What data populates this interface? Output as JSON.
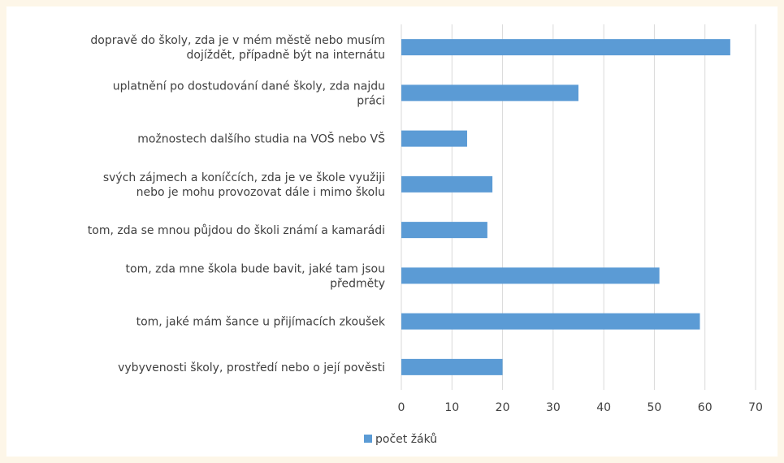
{
  "chart_data": {
    "type": "bar",
    "orientation": "horizontal",
    "categories": [
      [
        "dopravě do školy, zda je v mém městě nebo musím",
        "dojíždět, případně být na internátu"
      ],
      [
        "uplatnění po dostudování dané školy, zda najdu",
        "práci"
      ],
      [
        "možnostech dalšího studia na VOŠ nebo VŠ"
      ],
      [
        "svých zájmech a koníčcích, zda je ve škole využiji",
        "nebo je mohu provozovat dále i mimo školu"
      ],
      [
        "tom, zda se mnou půjdou do školi známí a kamarádi"
      ],
      [
        "tom, zda mne škola bude bavit, jaké tam jsou",
        "předměty"
      ],
      [
        "tom, jaké mám šance u přijímacích zkoušek"
      ],
      [
        "vybyvenosti školy, prostředí nebo o její pověsti"
      ]
    ],
    "series": [
      {
        "name": "počet žáků",
        "color": "#5b9bd5",
        "values": [
          65,
          35,
          13,
          18,
          17,
          51,
          59,
          20
        ]
      }
    ],
    "xlim": [
      0,
      70
    ],
    "xticks": [
      0,
      10,
      20,
      30,
      40,
      50,
      60,
      70
    ],
    "grid": true,
    "legend": "bottom",
    "title": "",
    "xlabel": "",
    "ylabel": ""
  }
}
